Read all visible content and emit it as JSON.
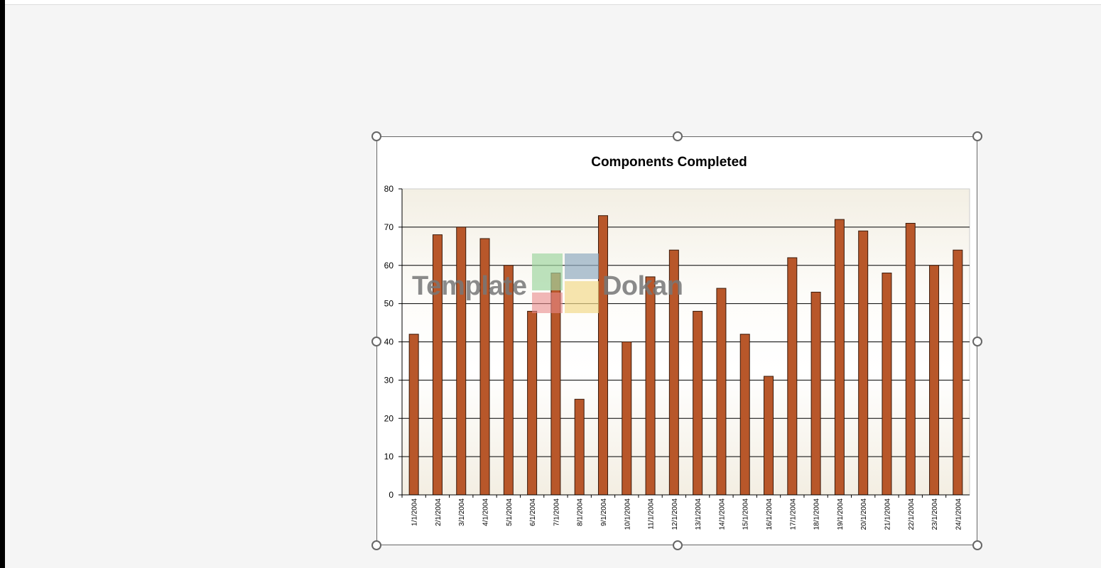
{
  "watermark": {
    "text_left": "Template",
    "text_right": "Dokan"
  },
  "colors": {
    "bar": "#b8572a",
    "bar_stroke": "#3a1a0a",
    "grid": "#000000"
  },
  "chart_data": {
    "type": "bar",
    "title": "Components Completed",
    "xlabel": "",
    "ylabel": "",
    "ylim": [
      0,
      80
    ],
    "yticks": [
      0,
      10,
      20,
      30,
      40,
      50,
      60,
      70,
      80
    ],
    "grid": true,
    "legend": "none",
    "categories": [
      "1/1/2004",
      "2/1/2004",
      "3/1/2004",
      "4/1/2004",
      "5/1/2004",
      "6/1/2004",
      "7/1/2004",
      "8/1/2004",
      "9/1/2004",
      "10/1/2004",
      "11/1/2004",
      "12/1/2004",
      "13/1/2004",
      "14/1/2004",
      "15/1/2004",
      "16/1/2004",
      "17/1/2004",
      "18/1/2004",
      "19/1/2004",
      "20/1/2004",
      "21/1/2004",
      "22/1/2004",
      "23/1/2004",
      "24/1/2004"
    ],
    "values": [
      42,
      68,
      70,
      67,
      60,
      48,
      58,
      25,
      73,
      40,
      57,
      64,
      48,
      54,
      42,
      31,
      62,
      53,
      72,
      69,
      58,
      71,
      60,
      64
    ]
  }
}
